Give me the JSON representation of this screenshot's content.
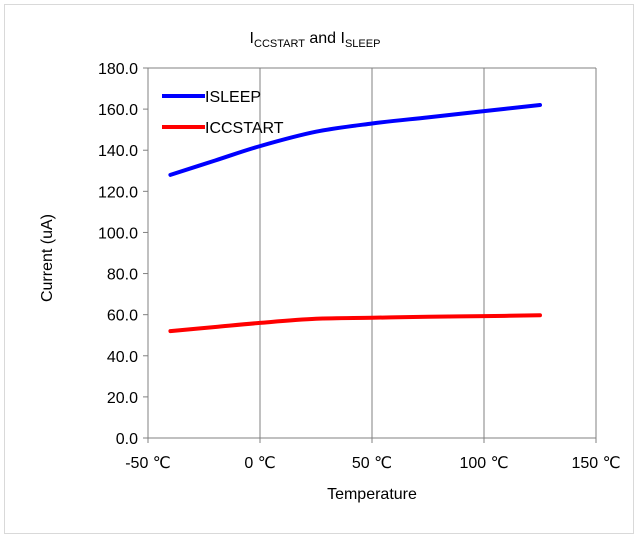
{
  "chart_data": {
    "type": "line",
    "title": {
      "main": "I",
      "sub1": "CCSTART",
      "mid": " and I",
      "sub2": "SLEEP"
    },
    "xlabel": "Temperature",
    "ylabel": "Current (uA)",
    "xlim": [
      -50,
      150
    ],
    "ylim": [
      0,
      180
    ],
    "x_ticks": [
      -50,
      0,
      50,
      100,
      150
    ],
    "x_tick_labels": [
      "-50 ℃",
      "0 ℃",
      "50 ℃",
      "100 ℃",
      "150 ℃"
    ],
    "y_ticks": [
      0,
      20,
      40,
      60,
      80,
      100,
      120,
      140,
      160,
      180
    ],
    "y_tick_labels": [
      "0.0",
      "20.0",
      "40.0",
      "60.0",
      "80.0",
      "100.0",
      "120.0",
      "140.0",
      "160.0",
      "180.0"
    ],
    "grid": "vertical",
    "legend_position": "top-left",
    "series": [
      {
        "name": "ISLEEP",
        "color": "#0000ff",
        "x": [
          -40,
          -20,
          0,
          25,
          50,
          75,
          100,
          125
        ],
        "values": [
          128,
          135,
          142,
          149,
          153,
          156,
          159,
          162
        ]
      },
      {
        "name": "ICCSTART",
        "color": "#ff0000",
        "x": [
          -40,
          -20,
          0,
          25,
          50,
          75,
          100,
          125
        ],
        "values": [
          52,
          54,
          56,
          58,
          58.5,
          59,
          59.3,
          59.7
        ]
      }
    ]
  }
}
